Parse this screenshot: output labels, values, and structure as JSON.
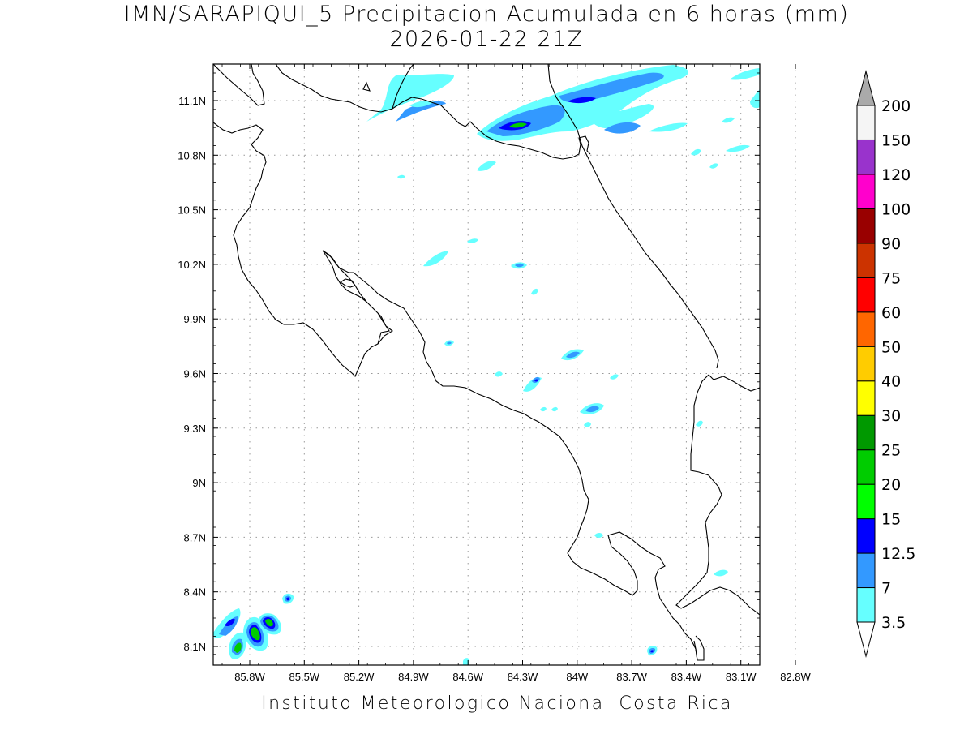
{
  "title": {
    "line1": "IMN/SARAPIQUI_5 Precipitacion Acumulada en 6 horas (mm)",
    "line2": "2026-01-22 21Z"
  },
  "footer": "Instituto Meteorologico Nacional Costa Rica",
  "map": {
    "lon_labels": [
      "85.8W",
      "85.5W",
      "85.2W",
      "84.9W",
      "84.6W",
      "84.3W",
      "84W",
      "83.7W",
      "83.4W",
      "83.1W",
      "82.8W"
    ],
    "lat_labels": [
      "11.1N",
      "10.8N",
      "10.5N",
      "10.2N",
      "9.9N",
      "9.6N",
      "9.3N",
      "9N",
      "8.7N",
      "8.4N",
      "8.1N"
    ],
    "region": "Costa Rica",
    "grid": "dotted"
  },
  "colorbar": {
    "levels": [
      "3.5",
      "7",
      "12.5",
      "15",
      "20",
      "25",
      "30",
      "40",
      "50",
      "60",
      "75",
      "90",
      "100",
      "120",
      "150",
      "200"
    ],
    "colors": [
      "#66ffff",
      "#3399ff",
      "#0000ff",
      "#00ff00",
      "#00cc00",
      "#009900",
      "#ffff00",
      "#ffcc00",
      "#ff6600",
      "#ff0000",
      "#cc3300",
      "#990000",
      "#ff00cc",
      "#9933cc",
      "#f5f5f5",
      "#aaaaaa"
    ],
    "lower_color": "#ffffff",
    "upper_color": "#aaaaaa"
  }
}
